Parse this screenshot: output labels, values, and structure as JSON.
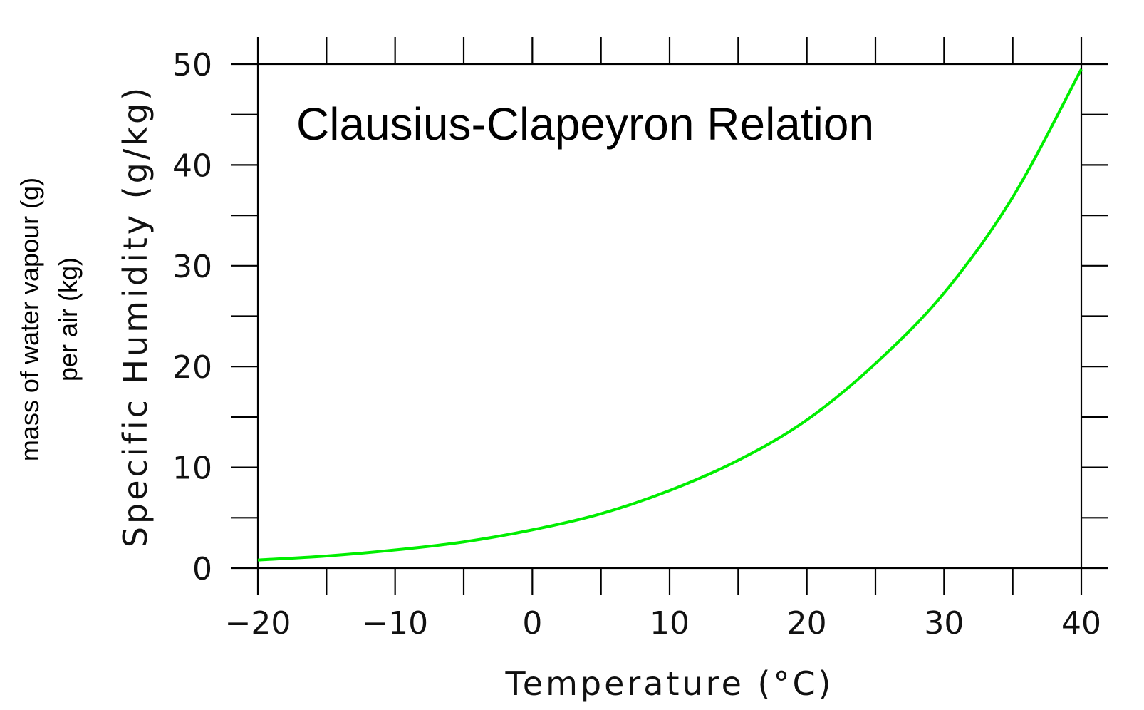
{
  "chart_data": {
    "type": "line",
    "title": "",
    "annotation": "Clausius-Clapeyron Relation",
    "xlabel": "Temperature (°C)",
    "ylabel": "Specific Humidity (g/kg)",
    "side_note": [
      "mass of water vapour (g)",
      "per air (kg)"
    ],
    "xlim": [
      -20,
      40
    ],
    "ylim": [
      0,
      50
    ],
    "x_ticks": [
      -20,
      -10,
      0,
      10,
      20,
      30,
      40
    ],
    "x_tick_labels": [
      "−20",
      "−10",
      "0",
      "10",
      "20",
      "30",
      "40"
    ],
    "y_ticks": [
      0,
      10,
      20,
      30,
      40,
      50
    ],
    "y_tick_labels": [
      "0",
      "10",
      "20",
      "30",
      "40",
      "50"
    ],
    "grid": false,
    "series": [
      {
        "color": "#00ee00",
        "x": [
          -20,
          -15,
          -10,
          -5,
          0,
          5,
          10,
          15,
          20,
          25,
          30,
          35,
          40
        ],
        "y": [
          0.8,
          1.2,
          1.8,
          2.6,
          3.8,
          5.4,
          7.7,
          10.7,
          14.7,
          20.3,
          27.3,
          36.8,
          49.5
        ]
      }
    ]
  }
}
